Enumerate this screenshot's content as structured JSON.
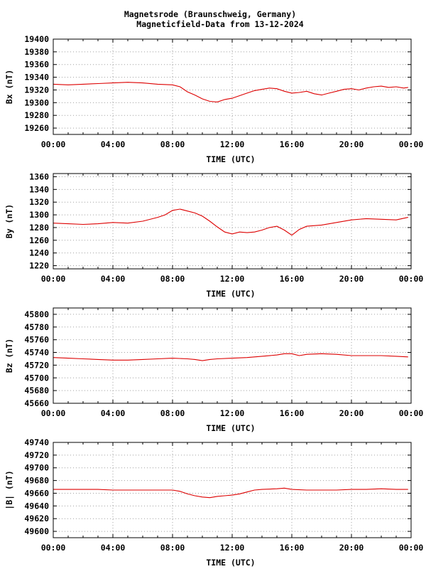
{
  "header": {
    "title_line1": "Magnetsrode (Braunschweig, Germany)",
    "title_line2": "Magneticfield-Data from 13-12-2024"
  },
  "colors": {
    "series": "#dd0000",
    "grid": "#a0a0a0",
    "axis": "#000000"
  },
  "chart_data": [
    {
      "type": "line",
      "ylabel": "Bx (nT)",
      "xlabel": "TIME (UTC)",
      "xlim": [
        0,
        24
      ],
      "ylim": [
        19250,
        19400
      ],
      "x_ticks": [
        "00:00",
        "04:00",
        "08:00",
        "12:00",
        "16:00",
        "20:00",
        "00:00"
      ],
      "y_ticks": [
        19260,
        19280,
        19300,
        19320,
        19340,
        19360,
        19380,
        19400
      ],
      "grid": true,
      "series": [
        {
          "x": [
            0,
            1,
            2,
            3,
            4,
            5,
            6,
            7,
            8,
            8.5,
            9,
            9.5,
            10,
            10.5,
            11,
            11.5,
            12,
            12.5,
            13,
            13.5,
            14,
            14.5,
            15,
            15.5,
            16,
            16.5,
            17,
            17.5,
            18,
            18.5,
            19,
            19.5,
            20,
            20.5,
            21,
            21.5,
            22,
            22.5,
            23,
            23.5,
            23.8
          ],
          "values": [
            19329,
            19328,
            19329,
            19330,
            19331,
            19332,
            19331,
            19329,
            19328,
            19325,
            19317,
            19312,
            19306,
            19302,
            19301,
            19305,
            19307,
            19311,
            19315,
            19319,
            19321,
            19323,
            19322,
            19318,
            19315,
            19316,
            19318,
            19314,
            19312,
            19315,
            19318,
            19321,
            19322,
            19320,
            19323,
            19325,
            19326,
            19324,
            19325,
            19323,
            19324
          ]
        }
      ]
    },
    {
      "type": "line",
      "ylabel": "By (nT)",
      "xlabel": "TIME (UTC)",
      "xlim": [
        0,
        24
      ],
      "ylim": [
        1215,
        1365
      ],
      "x_ticks": [
        "00:00",
        "04:00",
        "08:00",
        "12:00",
        "16:00",
        "20:00",
        "00:00"
      ],
      "y_ticks": [
        1220,
        1240,
        1260,
        1280,
        1300,
        1320,
        1340,
        1360
      ],
      "grid": true,
      "series": [
        {
          "x": [
            0,
            1,
            2,
            3,
            4,
            5,
            6,
            7,
            7.5,
            8,
            8.5,
            9,
            9.5,
            10,
            10.5,
            11,
            11.5,
            12,
            12.5,
            13,
            13.5,
            14,
            14.5,
            15,
            15.5,
            16,
            16.5,
            17,
            18,
            19,
            20,
            21,
            22,
            23,
            23.8
          ],
          "values": [
            1287,
            1286,
            1285,
            1286,
            1288,
            1287,
            1290,
            1296,
            1300,
            1307,
            1309,
            1306,
            1303,
            1298,
            1290,
            1281,
            1273,
            1270,
            1273,
            1272,
            1273,
            1276,
            1280,
            1282,
            1276,
            1268,
            1277,
            1282,
            1284,
            1288,
            1292,
            1294,
            1293,
            1292,
            1296
          ]
        }
      ]
    },
    {
      "type": "line",
      "ylabel": "Bz (nT)",
      "xlabel": "TIME (UTC)",
      "xlim": [
        0,
        24
      ],
      "ylim": [
        45660,
        45810
      ],
      "x_ticks": [
        "00:00",
        "04:00",
        "08:00",
        "12:00",
        "16:00",
        "20:00",
        "00:00"
      ],
      "y_ticks": [
        45660,
        45680,
        45700,
        45720,
        45740,
        45760,
        45780,
        45800
      ],
      "grid": true,
      "series": [
        {
          "x": [
            0,
            1,
            2,
            3,
            4,
            5,
            6,
            7,
            8,
            9,
            9.5,
            10,
            10.5,
            11,
            12,
            13,
            14,
            15,
            15.5,
            16,
            16.5,
            17,
            18,
            19,
            20,
            21,
            22,
            23,
            23.8
          ],
          "values": [
            45732,
            45731,
            45730,
            45729,
            45728,
            45728,
            45729,
            45730,
            45731,
            45730,
            45729,
            45727,
            45729,
            45730,
            45731,
            45732,
            45734,
            45736,
            45738,
            45738,
            45735,
            45737,
            45738,
            45737,
            45735,
            45735,
            45735,
            45734,
            45733
          ]
        }
      ]
    },
    {
      "type": "line",
      "ylabel": "|B| (nT)",
      "xlabel": "TIME (UTC)",
      "xlim": [
        0,
        24
      ],
      "ylim": [
        49590,
        49740
      ],
      "x_ticks": [
        "00:00",
        "04:00",
        "08:00",
        "12:00",
        "16:00",
        "20:00",
        "00:00"
      ],
      "y_ticks": [
        49600,
        49620,
        49640,
        49660,
        49680,
        49700,
        49720,
        49740
      ],
      "grid": true,
      "series": [
        {
          "x": [
            0,
            1,
            2,
            3,
            4,
            5,
            6,
            7,
            8,
            8.5,
            9,
            9.5,
            10,
            10.5,
            11,
            11.5,
            12,
            12.5,
            13,
            13.5,
            14,
            15,
            15.5,
            16,
            17,
            18,
            19,
            20,
            21,
            22,
            23,
            23.8
          ],
          "values": [
            49666,
            49666,
            49666,
            49666,
            49665,
            49665,
            49665,
            49665,
            49665,
            49663,
            49659,
            49656,
            49654,
            49653,
            49655,
            49656,
            49657,
            49659,
            49662,
            49665,
            49666,
            49667,
            49668,
            49666,
            49665,
            49665,
            49665,
            49666,
            49666,
            49667,
            49666,
            49666
          ]
        }
      ]
    }
  ]
}
